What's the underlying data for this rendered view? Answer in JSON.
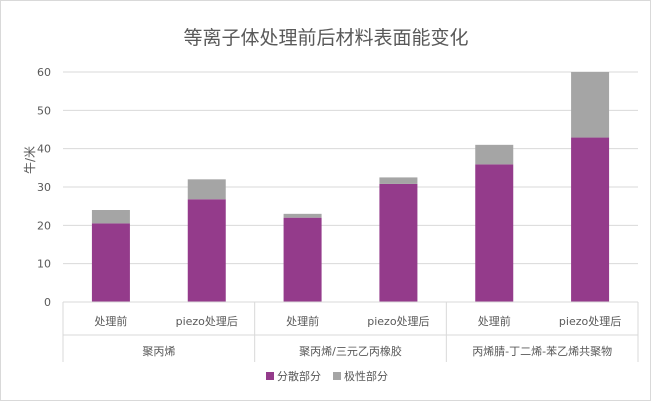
{
  "chart_data": {
    "type": "bar",
    "stacked": true,
    "title": "等离子体处理前后材料表面能变化",
    "ylabel": "牛/米",
    "ylim": [
      0,
      60
    ],
    "y_ticks": [
      0,
      10,
      20,
      30,
      40,
      50,
      60
    ],
    "grid": true,
    "legend_position": "bottom",
    "groups": [
      {
        "label": "聚丙烯",
        "categories": [
          "处理前",
          "piezo处理后"
        ]
      },
      {
        "label": "聚丙烯/三元乙丙橡胶",
        "categories": [
          "处理前",
          "piezo处理后"
        ]
      },
      {
        "label": "丙烯腈-丁二烯-苯乙烯共聚物",
        "categories": [
          "处理前",
          "piezo处理后"
        ]
      }
    ],
    "series": [
      {
        "name": "分散部分",
        "color": "#943b8b",
        "values": [
          20.5,
          26.8,
          22.0,
          30.8,
          35.9,
          42.9
        ]
      },
      {
        "name": "极性部分",
        "color": "#a5a5a5",
        "values": [
          3.5,
          5.2,
          1.0,
          1.7,
          5.1,
          17.1
        ]
      }
    ]
  }
}
